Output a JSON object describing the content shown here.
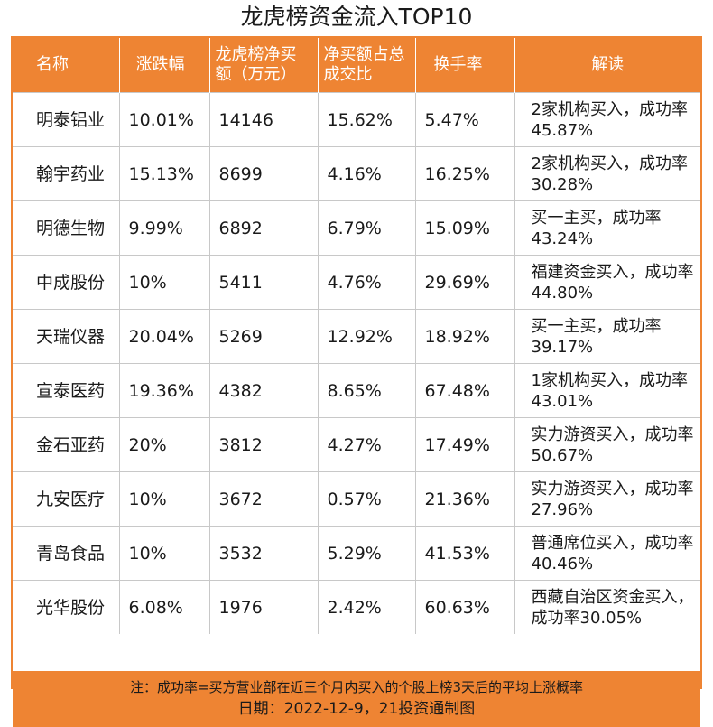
{
  "title": "龙虎榜资金流入TOP10",
  "columns": [
    "名称",
    "涨跌幅",
    "龙虎榜净买额（万元）",
    "净买额占总成交比",
    "换手率",
    "解读"
  ],
  "rows": [
    {
      "name": "明泰铝业",
      "change": "10.01%",
      "net_buy": "14146",
      "ratio": "15.62%",
      "turnover": "5.47%",
      "note": "2家机构买入，成功率45.87%"
    },
    {
      "name": "翰宇药业",
      "change": "15.13%",
      "net_buy": "8699",
      "ratio": "4.16%",
      "turnover": "16.25%",
      "note": "2家机构买入，成功率30.28%"
    },
    {
      "name": "明德生物",
      "change": "9.99%",
      "net_buy": "6892",
      "ratio": "6.79%",
      "turnover": "15.09%",
      "note": "买一主买，成功率43.24%"
    },
    {
      "name": "中成股份",
      "change": "10%",
      "net_buy": "5411",
      "ratio": "4.76%",
      "turnover": "29.69%",
      "note": "福建资金买入，成功率44.80%"
    },
    {
      "name": "天瑞仪器",
      "change": "20.04%",
      "net_buy": "5269",
      "ratio": "12.92%",
      "turnover": "18.92%",
      "note": "买一主买，成功率39.17%"
    },
    {
      "name": "宣泰医药",
      "change": "19.36%",
      "net_buy": "4382",
      "ratio": "8.65%",
      "turnover": "67.48%",
      "note": "1家机构买入，成功率43.01%"
    },
    {
      "name": "金石亚药",
      "change": "20%",
      "net_buy": "3812",
      "ratio": "4.27%",
      "turnover": "17.49%",
      "note": "实力游资买入，成功率50.67%"
    },
    {
      "name": "九安医疗",
      "change": "10%",
      "net_buy": "3672",
      "ratio": "0.57%",
      "turnover": "21.36%",
      "note": "实力游资买入，成功率27.96%"
    },
    {
      "name": "青岛食品",
      "change": "10%",
      "net_buy": "3532",
      "ratio": "5.29%",
      "turnover": "41.53%",
      "note": "普通席位买入，成功率40.46%"
    },
    {
      "name": "光华股份",
      "change": "6.08%",
      "net_buy": "1976",
      "ratio": "2.42%",
      "turnover": "60.63%",
      "note": "西藏自治区资金买入，成功率30.05%"
    }
  ],
  "footer": {
    "note": "注：成功率=买方营业部在近三个月内买入的个股上榜3天后的平均上涨概率",
    "date": "日期：2022-12-9，21投资通制图"
  },
  "colors": {
    "accent": "#ee8433",
    "grid": "#c8c8c8"
  }
}
